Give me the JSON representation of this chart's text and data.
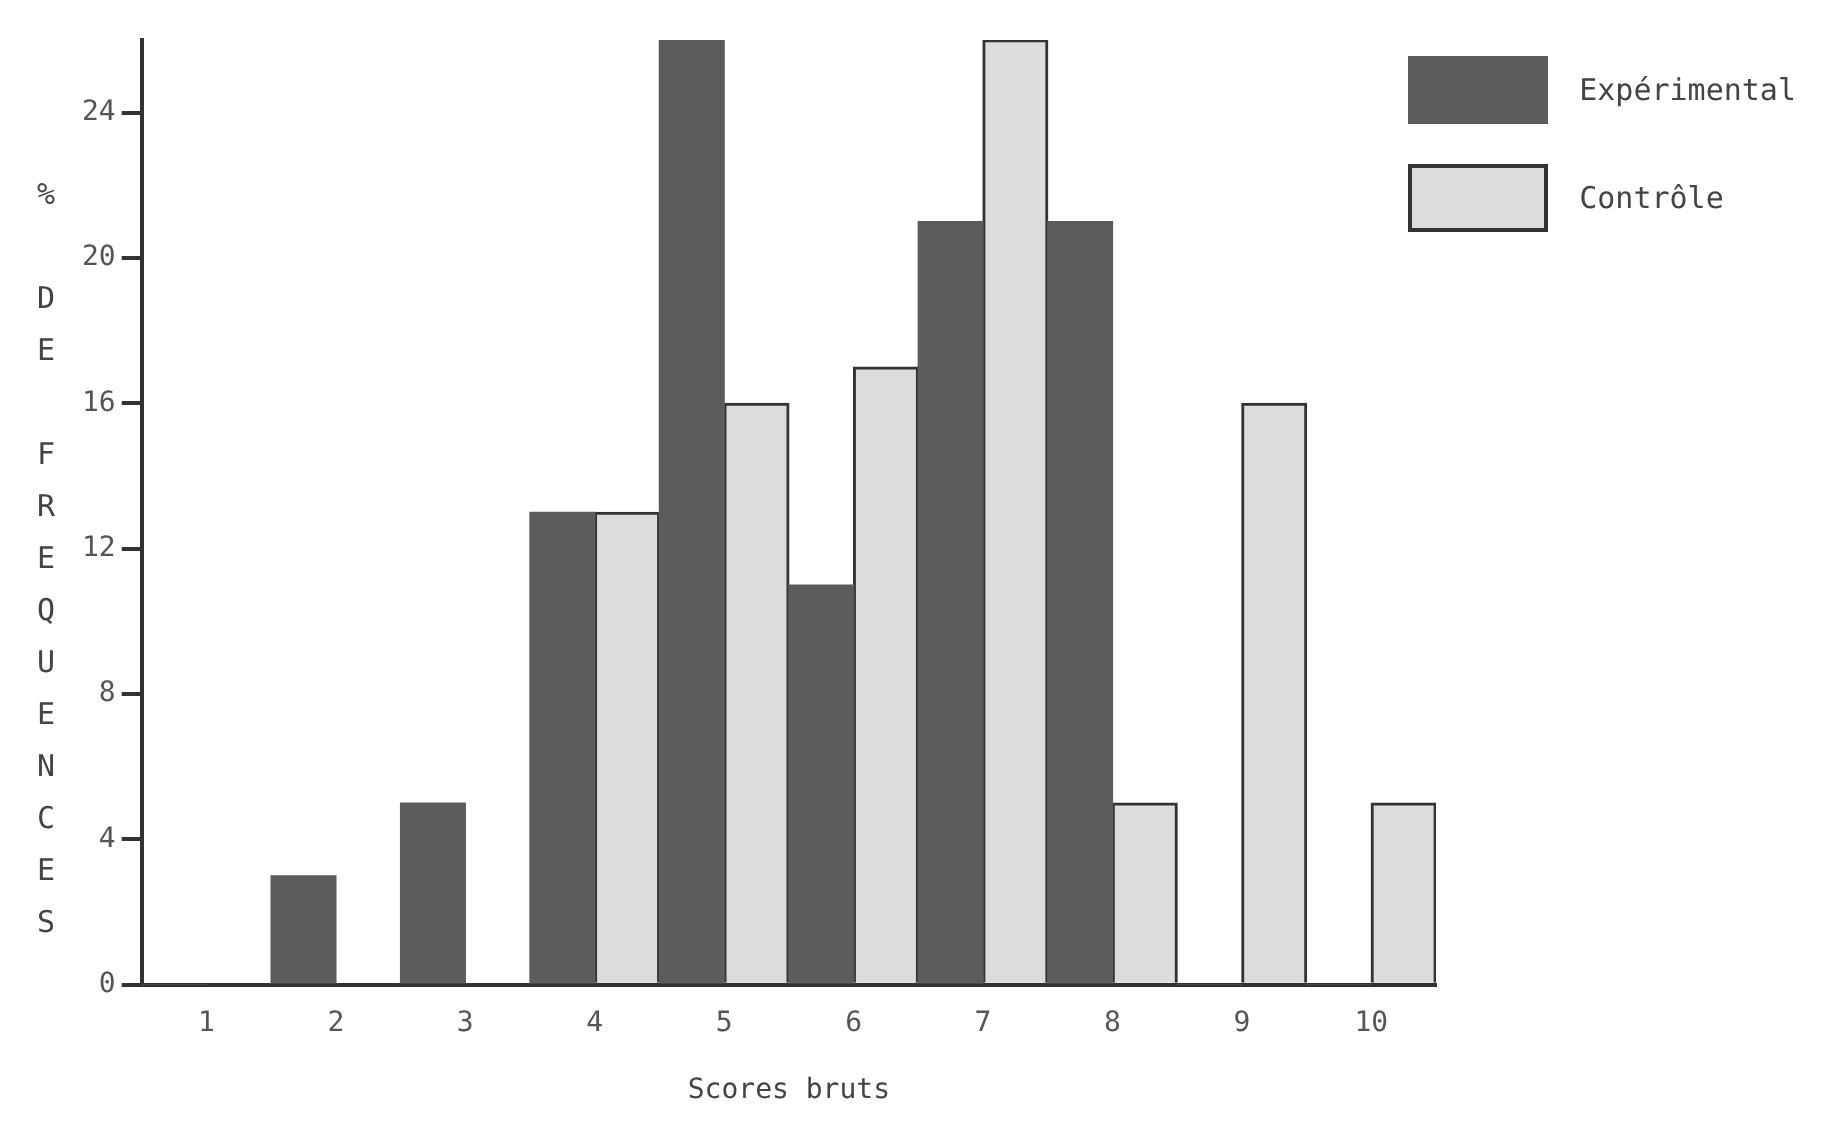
{
  "chart_data": {
    "type": "bar",
    "ylabel": "% DE FREQUENCES",
    "xlabel": "Scores bruts",
    "categories": [
      "1",
      "2",
      "3",
      "4",
      "5",
      "6",
      "7",
      "8",
      "9",
      "10"
    ],
    "series": [
      {
        "name": "Expérimental",
        "color": "#5c5c5c",
        "values": [
          0,
          3,
          5,
          13,
          26,
          11,
          21,
          21,
          0,
          0
        ]
      },
      {
        "name": "Contrôle",
        "color": "#dcdcdc",
        "values": [
          0,
          0,
          0,
          13,
          16,
          17,
          26,
          5,
          16,
          5
        ]
      }
    ],
    "ylim": [
      0,
      26
    ],
    "yticks": [
      0,
      4,
      8,
      12,
      16,
      20,
      24
    ],
    "grid": false,
    "legend": "top right"
  }
}
